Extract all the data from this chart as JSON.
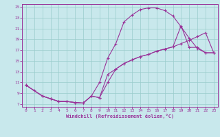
{
  "xlabel": "Windchill (Refroidissement éolien,°C)",
  "bg_color": "#c8e8ec",
  "line_color": "#993399",
  "grid_color": "#99cccc",
  "xlim": [
    -0.5,
    23.5
  ],
  "ylim": [
    6.5,
    25.5
  ],
  "xticks": [
    0,
    1,
    2,
    3,
    4,
    5,
    6,
    7,
    8,
    9,
    10,
    11,
    12,
    13,
    14,
    15,
    16,
    17,
    18,
    19,
    20,
    21,
    22,
    23
  ],
  "yticks": [
    7,
    9,
    11,
    13,
    15,
    17,
    19,
    21,
    23,
    25
  ],
  "line1_x": [
    0,
    1,
    2,
    3,
    4,
    5,
    6,
    7,
    8,
    9,
    10,
    11,
    12,
    13,
    14,
    15,
    16,
    17,
    18,
    19,
    20,
    21,
    22,
    23
  ],
  "line1_y": [
    10.5,
    9.5,
    8.5,
    8.0,
    7.5,
    7.5,
    7.3,
    7.2,
    8.5,
    11.0,
    15.5,
    18.2,
    22.2,
    23.5,
    24.5,
    24.8,
    24.8,
    24.3,
    23.3,
    21.3,
    19.2,
    17.3,
    16.5,
    16.5
  ],
  "line2_x": [
    0,
    2,
    3,
    4,
    5,
    6,
    7,
    8,
    9,
    10,
    11,
    12,
    13,
    14,
    15,
    16,
    17,
    18,
    19,
    20,
    21,
    22,
    23
  ],
  "line2_y": [
    10.5,
    8.5,
    8.0,
    7.5,
    7.5,
    7.3,
    7.2,
    8.5,
    8.2,
    12.5,
    13.5,
    14.5,
    15.2,
    15.8,
    16.2,
    16.8,
    17.2,
    17.6,
    18.2,
    18.8,
    19.5,
    20.2,
    16.5
  ],
  "line3_x": [
    0,
    2,
    3,
    4,
    5,
    6,
    7,
    8,
    9,
    10,
    11,
    12,
    13,
    14,
    15,
    16,
    17,
    18,
    19,
    20,
    21,
    22,
    23
  ],
  "line3_y": [
    10.5,
    8.5,
    8.0,
    7.5,
    7.5,
    7.3,
    7.2,
    8.5,
    8.2,
    11.0,
    13.5,
    14.5,
    15.2,
    15.8,
    16.2,
    16.8,
    17.2,
    17.6,
    21.5,
    17.5,
    17.5,
    16.5,
    16.5
  ]
}
